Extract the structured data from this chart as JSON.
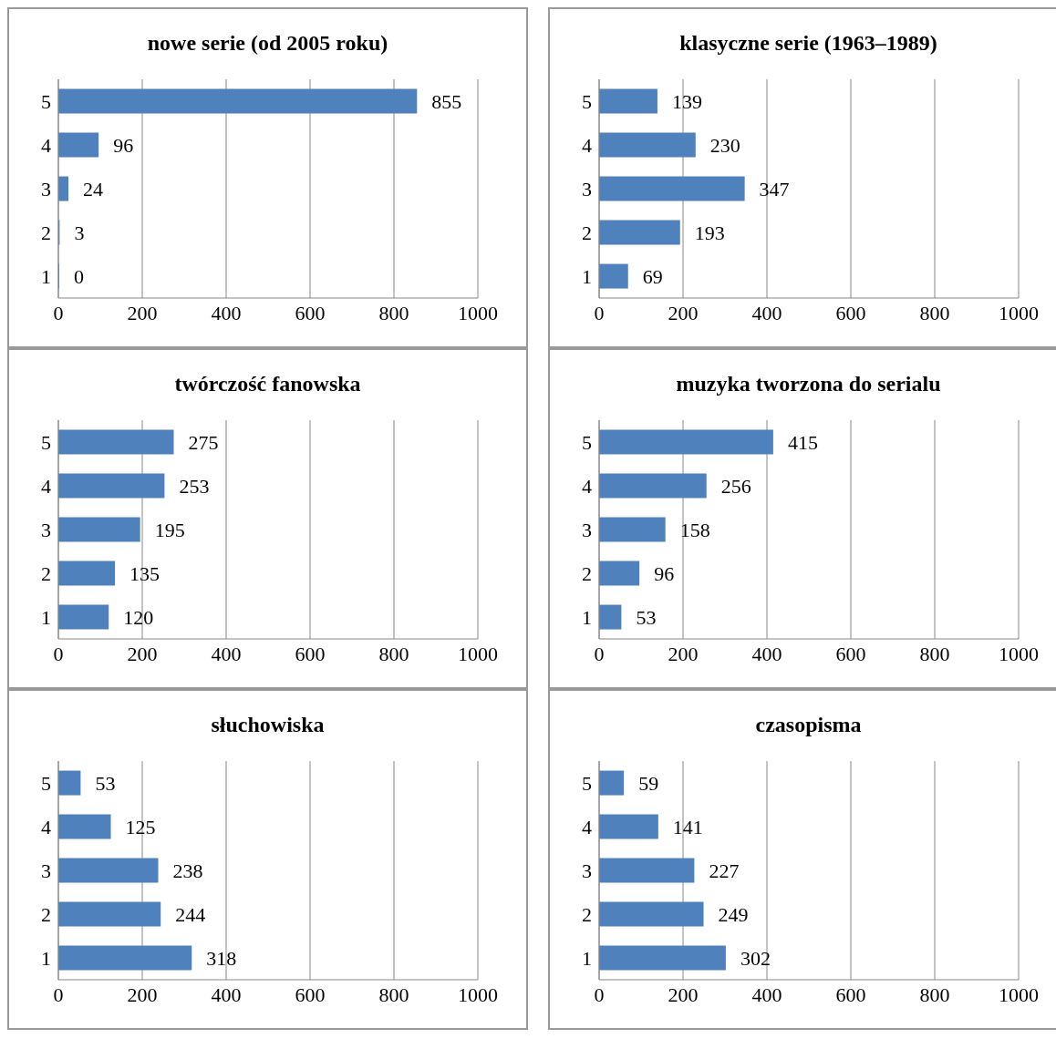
{
  "chart_data": [
    {
      "type": "bar",
      "orientation": "horizontal",
      "title": "nowe serie (od 2005 roku)",
      "categories": [
        "5",
        "4",
        "3",
        "2",
        "1"
      ],
      "values": [
        855,
        96,
        24,
        3,
        0
      ],
      "color": "#4f81bd",
      "xlim": [
        0,
        1000
      ],
      "xticks": [
        0,
        200,
        400,
        600,
        800,
        1000
      ],
      "grid": "x",
      "data_labels": true
    },
    {
      "type": "bar",
      "orientation": "horizontal",
      "title": "klasyczne serie (1963–1989)",
      "categories": [
        "5",
        "4",
        "3",
        "2",
        "1"
      ],
      "values": [
        139,
        230,
        347,
        193,
        69
      ],
      "color": "#4f81bd",
      "xlim": [
        0,
        1000
      ],
      "xticks": [
        0,
        200,
        400,
        600,
        800,
        1000
      ],
      "grid": "x",
      "data_labels": true
    },
    {
      "type": "bar",
      "orientation": "horizontal",
      "title": "twórczość fanowska",
      "categories": [
        "5",
        "4",
        "3",
        "2",
        "1"
      ],
      "values": [
        275,
        253,
        195,
        135,
        120
      ],
      "color": "#4f81bd",
      "xlim": [
        0,
        1000
      ],
      "xticks": [
        0,
        200,
        400,
        600,
        800,
        1000
      ],
      "grid": "x",
      "data_labels": true
    },
    {
      "type": "bar",
      "orientation": "horizontal",
      "title": "muzyka tworzona do serialu",
      "categories": [
        "5",
        "4",
        "3",
        "2",
        "1"
      ],
      "values": [
        415,
        256,
        158,
        96,
        53
      ],
      "color": "#4f81bd",
      "xlim": [
        0,
        1000
      ],
      "xticks": [
        0,
        200,
        400,
        600,
        800,
        1000
      ],
      "grid": "x",
      "data_labels": true
    },
    {
      "type": "bar",
      "orientation": "horizontal",
      "title": "słuchowiska",
      "categories": [
        "5",
        "4",
        "3",
        "2",
        "1"
      ],
      "values": [
        53,
        125,
        238,
        244,
        318
      ],
      "color": "#4f81bd",
      "xlim": [
        0,
        1000
      ],
      "xticks": [
        0,
        200,
        400,
        600,
        800,
        1000
      ],
      "grid": "x",
      "data_labels": true
    },
    {
      "type": "bar",
      "orientation": "horizontal",
      "title": "czasopisma",
      "categories": [
        "5",
        "4",
        "3",
        "2",
        "1"
      ],
      "values": [
        59,
        141,
        227,
        249,
        302
      ],
      "color": "#4f81bd",
      "xlim": [
        0,
        1000
      ],
      "xticks": [
        0,
        200,
        400,
        600,
        800,
        1000
      ],
      "grid": "x",
      "data_labels": true
    }
  ]
}
